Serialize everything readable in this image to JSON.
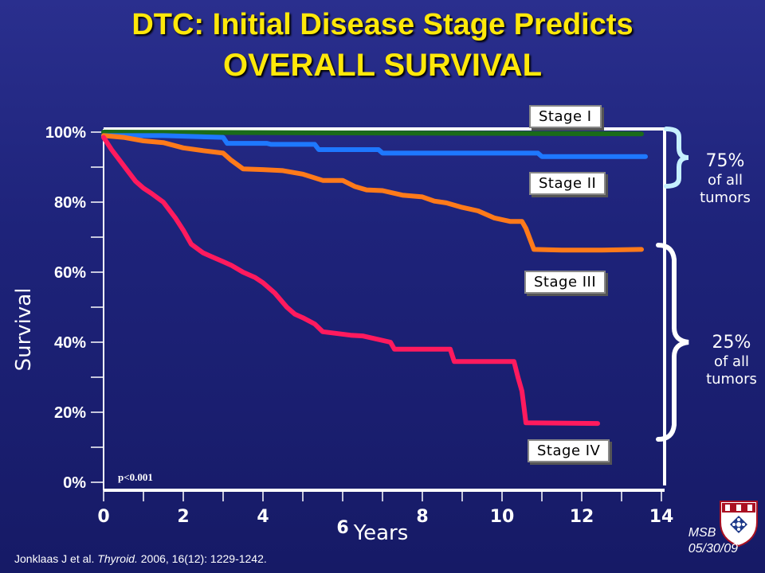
{
  "slide": {
    "title_line1": "DTC: Initial Disease Stage Predicts",
    "title_line2": "OVERALL SURVIVAL",
    "footnote_authors": "Jonklaas J et al. ",
    "footnote_journal": "Thyroid.",
    "footnote_rest": " 2006, 16(12): 1229-1242.",
    "msb_line1": "MSB",
    "msb_line2": "05/30/09",
    "p_value": "p<0.001",
    "group_upper": {
      "pct": "75%",
      "line1": "of all",
      "line2": "tumors"
    },
    "group_lower": {
      "pct": "25%",
      "line1": "of all",
      "line2": "tumors"
    },
    "logo": "university-shield-logo"
  },
  "chart_data": {
    "type": "line",
    "xlabel": "Years",
    "ylabel": "Survival",
    "xlim": [
      0,
      14
    ],
    "ylim": [
      0,
      100
    ],
    "x_ticks": [
      "0",
      "2",
      "4",
      "6",
      "8",
      "10",
      "12",
      "14"
    ],
    "y_ticks": [
      "0%",
      "20%",
      "40%",
      "60%",
      "80%",
      "100%"
    ],
    "grid": false,
    "series": [
      {
        "name": "Stage I",
        "color": "#1a6b1a",
        "x": [
          0,
          13.5
        ],
        "y": [
          100,
          99.5
        ]
      },
      {
        "name": "Stage II",
        "color": "#1e78ff",
        "x": [
          0,
          1.5,
          3.0,
          3.1,
          4.1,
          4.2,
          5.3,
          5.4,
          6.9,
          7.0,
          10.9,
          11.0,
          13.6
        ],
        "y": [
          99,
          99,
          98.5,
          96.8,
          96.8,
          96.5,
          96.5,
          95,
          95,
          94,
          94,
          93,
          93
        ]
      },
      {
        "name": "Stage III",
        "color": "#ff7a1a",
        "x": [
          0,
          0.5,
          1.0,
          1.5,
          2.0,
          2.5,
          3.0,
          3.2,
          3.5,
          4.0,
          4.5,
          5.0,
          5.5,
          6.0,
          6.3,
          6.6,
          7.0,
          7.5,
          8.0,
          8.3,
          8.6,
          9.0,
          9.4,
          9.8,
          10.2,
          10.5,
          10.6,
          10.8,
          11.5,
          12.5,
          13.5
        ],
        "y": [
          99,
          98.5,
          97.5,
          97,
          95.5,
          94.7,
          94,
          92,
          89.5,
          89.3,
          89,
          88,
          86.2,
          86.2,
          84.5,
          83.5,
          83.3,
          82,
          81.5,
          80.3,
          79.8,
          78.5,
          77.5,
          75.5,
          74.5,
          74.5,
          72.5,
          66.5,
          66.3,
          66.3,
          66.5
        ]
      },
      {
        "name": "Stage IV",
        "color": "#ff1a5e",
        "x": [
          0,
          0.2,
          0.4,
          0.6,
          0.8,
          1.0,
          1.2,
          1.5,
          1.7,
          1.8,
          2.0,
          2.1,
          2.2,
          2.5,
          2.7,
          3.0,
          3.2,
          3.5,
          3.8,
          4.0,
          4.3,
          4.6,
          4.8,
          5.0,
          5.3,
          5.5,
          6.2,
          6.5,
          7.2,
          7.3,
          8.7,
          8.8,
          10.3,
          10.4,
          10.5,
          10.6,
          12.4
        ],
        "y": [
          98.5,
          95,
          92,
          89,
          86,
          84,
          82.5,
          80,
          77,
          75.5,
          72,
          70,
          68,
          65.5,
          64.5,
          63,
          62,
          60,
          58.5,
          57,
          54,
          50,
          48,
          47,
          45.2,
          43,
          42,
          41.8,
          40,
          38,
          38,
          34.5,
          34.5,
          30,
          26,
          17,
          16.8
        ]
      }
    ]
  }
}
